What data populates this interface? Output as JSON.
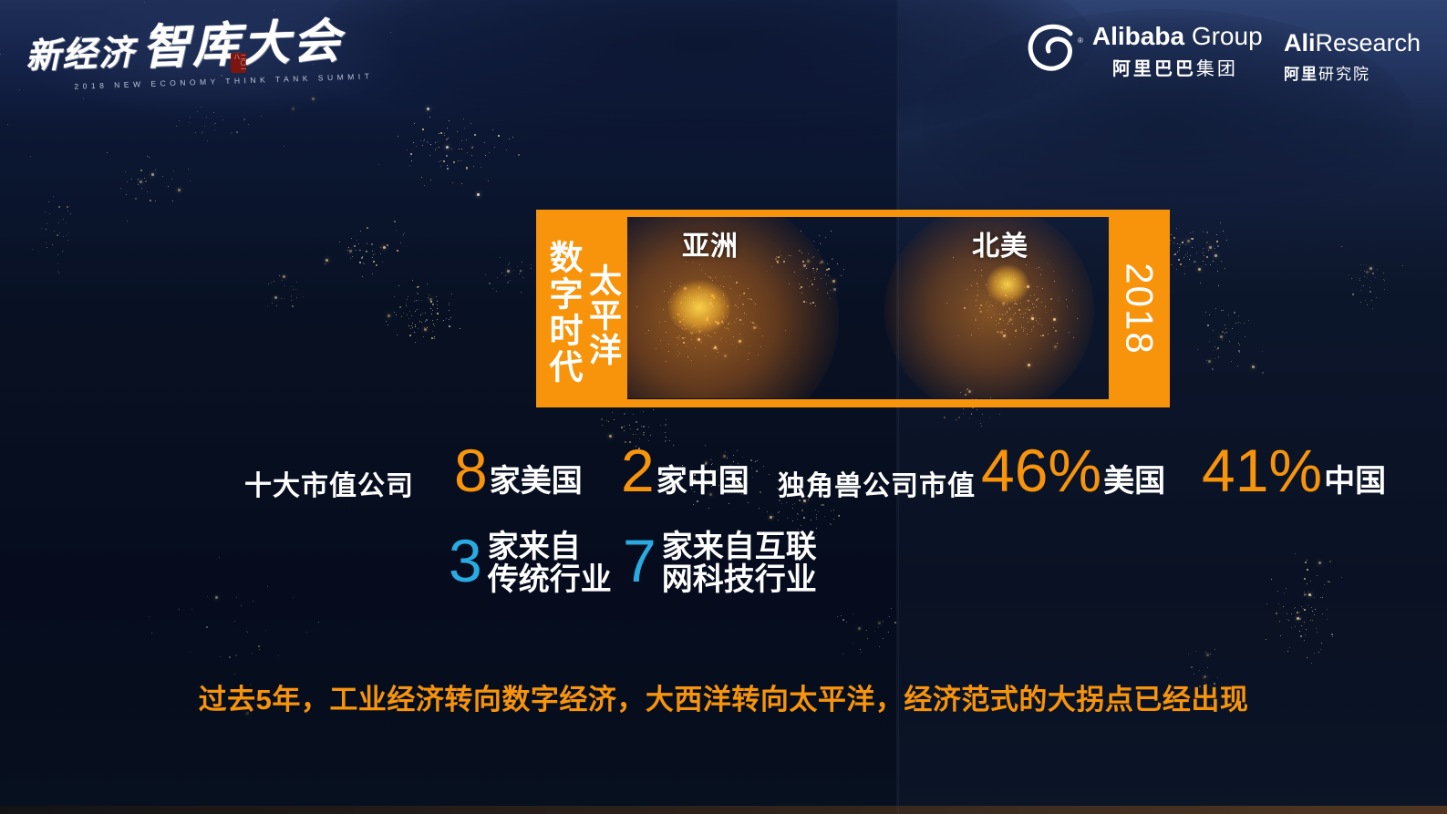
{
  "header": {
    "summit": {
      "line1": "新经济",
      "line2": "智库大会",
      "subtitle": "2018 NEW ECONOMY THINK TANK SUMMIT",
      "seal": "二〇一八"
    },
    "alibaba": {
      "en_bold": "Alibaba",
      "en_light": " Group",
      "cn_bold": "阿里巴巴",
      "cn_light": "集团",
      "reg": "®"
    },
    "aliresearch": {
      "en_bold": "Ali",
      "en_light": "Research",
      "cn_bold": "阿里",
      "cn_light": "研究院"
    }
  },
  "era_box": {
    "pacific": "太平洋",
    "digital_era": "数字时代",
    "year": "2018",
    "asia_label": "亚洲",
    "north_america_label": "北美"
  },
  "stats": {
    "top": {
      "label": "十大市值公司",
      "groups": [
        {
          "value": "8",
          "unit": "家美国"
        },
        {
          "value": "2",
          "unit": "家中国"
        }
      ],
      "label2": "独角兽公司市值",
      "groups2": [
        {
          "value": "46%",
          "unit": "美国"
        },
        {
          "value": "41%",
          "unit": "中国"
        }
      ]
    },
    "bottom": {
      "groups": [
        {
          "value": "3",
          "line1": "家来自",
          "line2": "传统行业"
        },
        {
          "value": "7",
          "line1": "家来自互联",
          "line2": "网科技行业"
        }
      ]
    }
  },
  "footer": {
    "message": "过去5年，工业经济转向数字经济，大西洋转向太平洋，经济范式的大拐点已经出现"
  },
  "colors": {
    "accent_orange": "#F7940B",
    "accent_cyan": "#29ABE2",
    "background_navy": "#0A1329",
    "seal_red": "#7C150F",
    "text_white": "#FFFFFF"
  }
}
